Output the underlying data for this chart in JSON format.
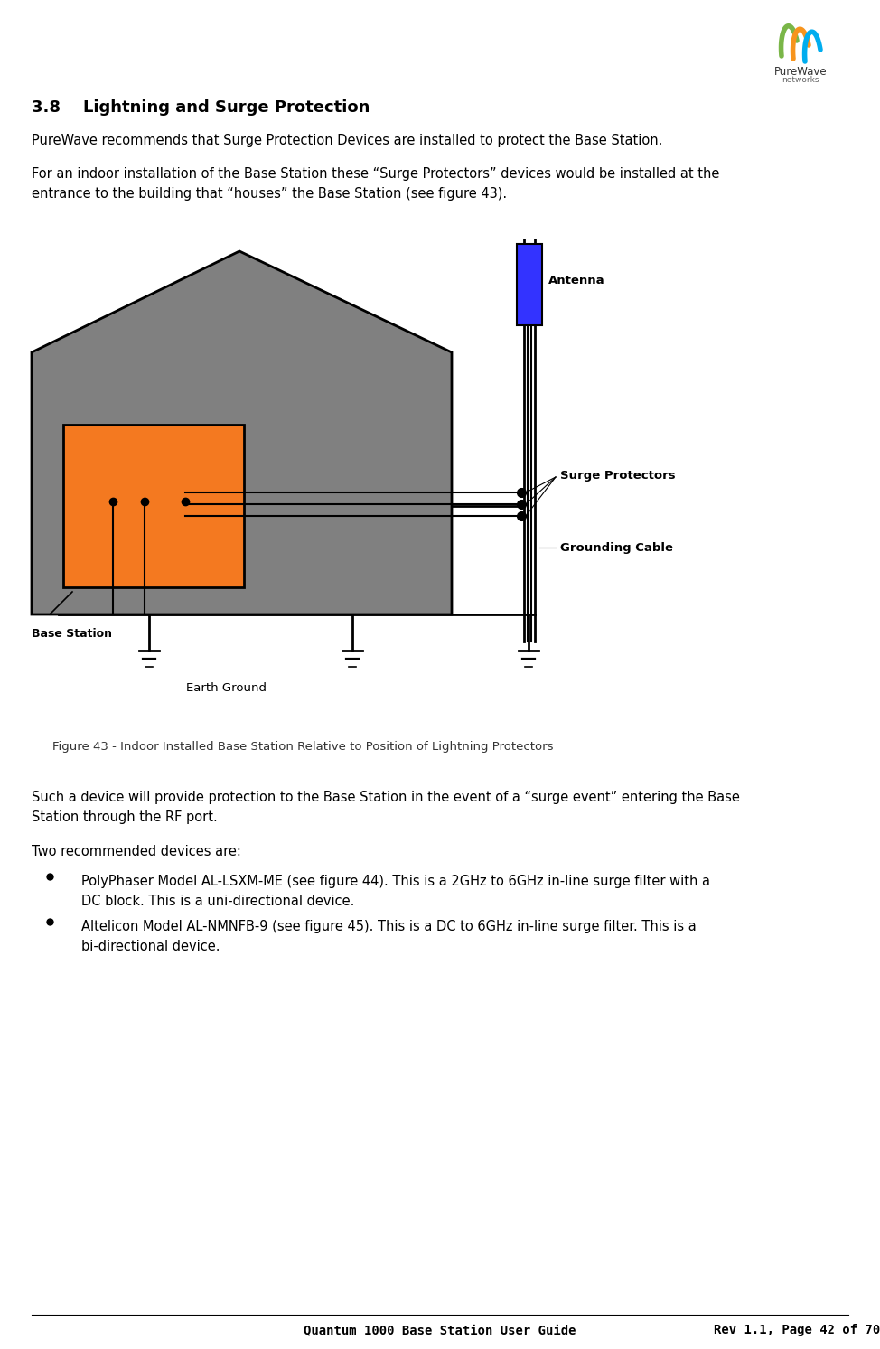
{
  "title_section": "3.8    Lightning and Surge Protection",
  "para1": "PureWave recommends that Surge Protection Devices are installed to protect the Base Station.",
  "para2_line1": "For an indoor installation of the Base Station these “Surge Protectors” devices would be installed at the",
  "para2_line2": "entrance to the building that “houses” the Base Station (see figure 43).",
  "fig_caption": "Figure 43 - Indoor Installed Base Station Relative to Position of Lightning Protectors",
  "para3_line1": "Such a device will provide protection to the Base Station in the event of a “surge event” entering the Base",
  "para3_line2": "Station through the RF port.",
  "para4": "Two recommended devices are:",
  "b1_line1": "PolyPhaser Model AL-LSXM-ME (see figure 44). This is a 2GHz to 6GHz in-line surge filter with a",
  "b1_line2": "DC block. This is a uni-directional device.",
  "b2_line1": "Altelicon Model AL-NMNFB-9 (see figure 45). This is a DC to 6GHz in-line surge filter. This is a",
  "b2_line2": "bi-directional device.",
  "footer_left": "Quantum 1000 Base Station User Guide",
  "footer_right": "Rev 1.1, Page 42 of 70",
  "bg_color": "#ffffff",
  "text_color": "#000000",
  "building_color": "#808080",
  "base_station_color": "#f47920",
  "antenna_color": "#3333ff",
  "surge_label_color": "#000000",
  "ground_label_color": "#000000",
  "logo_green": "#7ab648",
  "logo_orange": "#f7941d",
  "logo_blue": "#00adef"
}
